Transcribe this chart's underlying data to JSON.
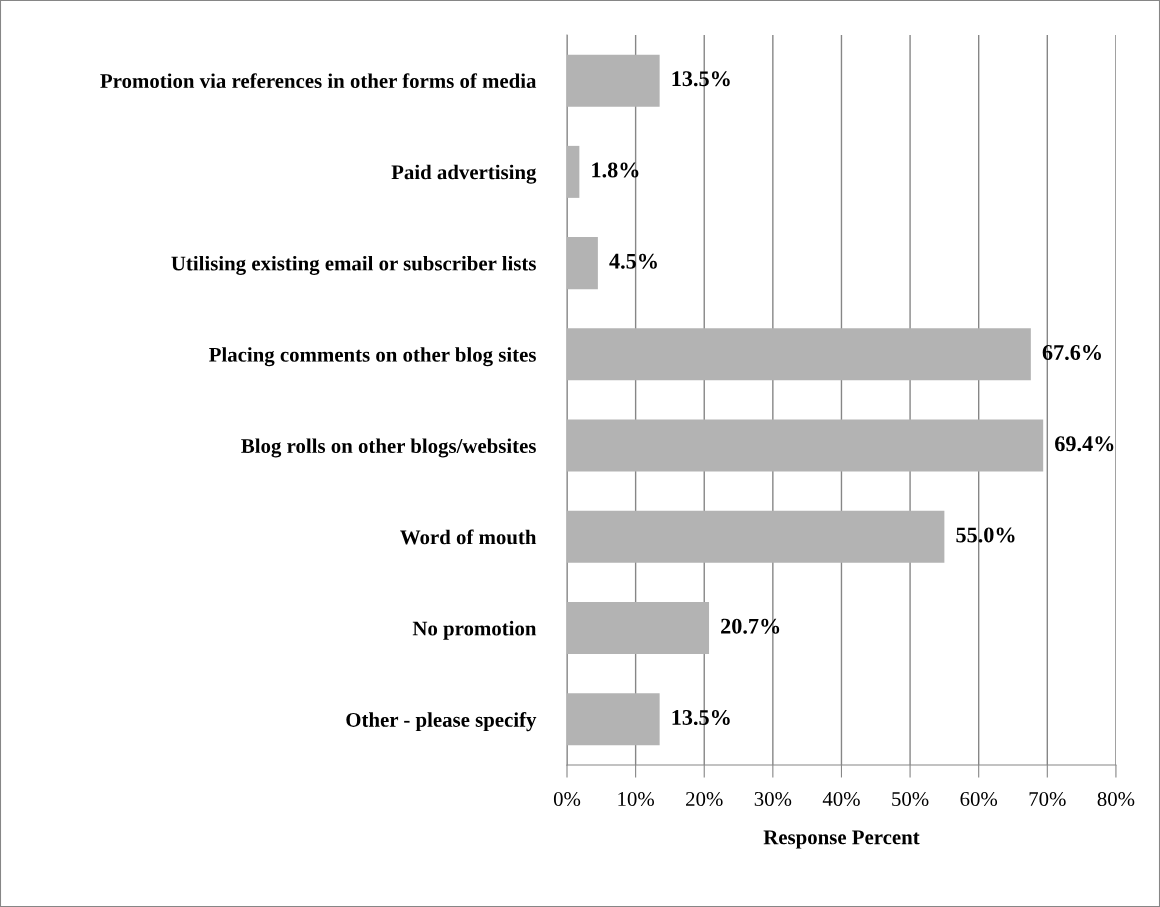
{
  "chart_data": {
    "type": "bar",
    "orientation": "horizontal",
    "xlabel": "Response Percent",
    "categories": [
      "Promotion via references in other forms of media",
      "Paid advertising",
      "Utilising existing email or subscriber lists",
      "Placing comments on other blog sites",
      "Blog rolls on other blogs/websites",
      "Word of mouth",
      "No promotion",
      "Other - please specify"
    ],
    "values": [
      13.5,
      1.8,
      4.5,
      67.6,
      69.4,
      55.0,
      20.7,
      13.5
    ],
    "value_labels": [
      "13.5%",
      "1.8%",
      "4.5%",
      "67.6%",
      "69.4%",
      "55.0%",
      "20.7%",
      "13.5%"
    ],
    "color": "#b3b3b3",
    "xlim": [
      0,
      80
    ],
    "xticks": [
      {
        "value": 0,
        "label": "0%"
      },
      {
        "value": 10,
        "label": "10%"
      },
      {
        "value": 20,
        "label": "20%"
      },
      {
        "value": 30,
        "label": "30%"
      },
      {
        "value": 40,
        "label": "40%"
      },
      {
        "value": 50,
        "label": "50%"
      },
      {
        "value": 60,
        "label": "60%"
      },
      {
        "value": 70,
        "label": "70%"
      },
      {
        "value": 80,
        "label": "80%"
      }
    ],
    "grid": "x",
    "legend": false
  }
}
